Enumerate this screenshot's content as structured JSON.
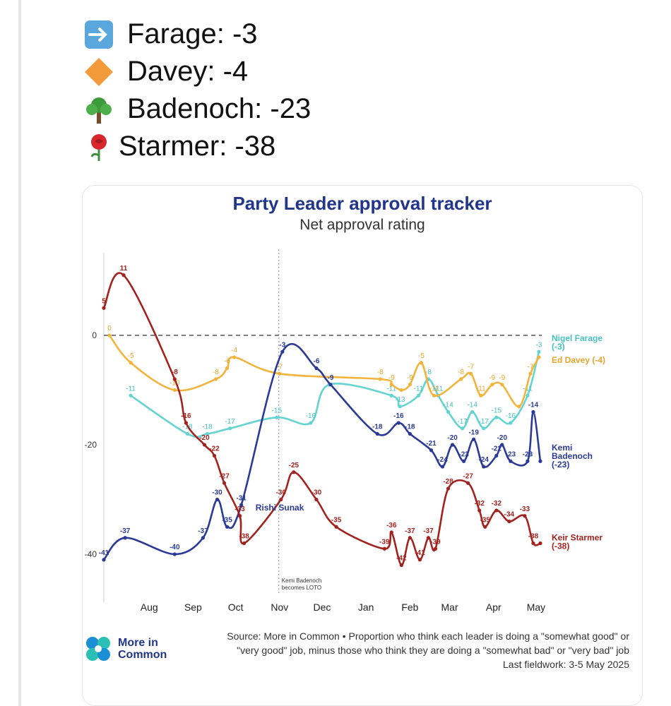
{
  "post": {
    "lines": [
      {
        "icon": "right-arrow-emoji-icon",
        "text": "Farage: -3"
      },
      {
        "icon": "orange-diamond-emoji-icon",
        "text": "Davey: -4"
      },
      {
        "icon": "tree-emoji-icon",
        "text": "Badenoch: -23"
      },
      {
        "icon": "rose-emoji-icon",
        "text": "Starmer: -38"
      }
    ]
  },
  "chart": {
    "title": "Party Leader approval tracker",
    "subtitle": "Net approval rating",
    "annotation": [
      "Kemi Badenoch",
      "becomes LOTO"
    ],
    "source_lines": [
      "Source: More in Common • Proportion who think each leader is doing a \"somewhat good\" or",
      "\"very good\" job, minus those who think they are doing a \"somewhat bad\" or \"very bad\" job",
      "Last fieldwork: 3-5 May 2025"
    ],
    "logo_lines": [
      "More in",
      "Common"
    ]
  },
  "chart_data": {
    "type": "line",
    "title": "Party Leader approval tracker",
    "subtitle": "Net approval rating",
    "xlabel": "",
    "ylabel": "",
    "x_ticks": [
      "Aug",
      "Sep",
      "Oct",
      "Nov",
      "Dec",
      "Jan",
      "Feb",
      "Mar",
      "Apr",
      "May"
    ],
    "y_ticks": [
      "0",
      "-20",
      "-40"
    ],
    "ylim": [
      -45,
      12
    ],
    "grid": false,
    "legend": "end-of-line labels",
    "annotation": "Kemi Badenoch becomes LOTO",
    "series": [
      {
        "name": "Nigel Farage",
        "label_lines": [
          "Nigel Farage",
          "(-3)"
        ],
        "color": "#63d4d1",
        "label_dark": false,
        "points": [
          {
            "x": "2024-07-20",
            "y": -11,
            "label": "-11"
          },
          {
            "x": "2024-08-29",
            "y": -18,
            "label": "-18"
          },
          {
            "x": "2024-09-12",
            "y": -18,
            "label": "-18"
          },
          {
            "x": "2024-09-28",
            "y": -17,
            "label": "-17"
          },
          {
            "x": "2024-10-31",
            "y": -15,
            "label": "-15"
          },
          {
            "x": "2024-11-24",
            "y": -16,
            "label": "-16"
          },
          {
            "x": "2024-12-07",
            "y": -9,
            "label": ""
          },
          {
            "x": "2025-01-20",
            "y": -11,
            "label": "-11"
          },
          {
            "x": "2025-01-26",
            "y": -13,
            "label": "-13"
          },
          {
            "x": "2025-02-08",
            "y": -11,
            "label": "-11"
          },
          {
            "x": "2025-02-15",
            "y": -8,
            "label": "-8"
          },
          {
            "x": "2025-02-22",
            "y": -11,
            "label": "-11"
          },
          {
            "x": "2025-03-01",
            "y": -14,
            "label": "-14"
          },
          {
            "x": "2025-03-11",
            "y": -17,
            "label": "-17"
          },
          {
            "x": "2025-03-18",
            "y": -14,
            "label": "-14"
          },
          {
            "x": "2025-03-26",
            "y": -17,
            "label": "-17"
          },
          {
            "x": "2025-04-04",
            "y": -15,
            "label": "-15"
          },
          {
            "x": "2025-04-14",
            "y": -16,
            "label": "-16"
          },
          {
            "x": "2025-04-26",
            "y": -11,
            "label": "-11"
          },
          {
            "x": "2025-05-04",
            "y": -3,
            "label": "-3"
          }
        ]
      },
      {
        "name": "Ed Davey",
        "label_lines": [
          "Ed Davey (-4)"
        ],
        "color": "#f2b43c",
        "label_dark": false,
        "points": [
          {
            "x": "2024-07-05",
            "y": 0,
            "label": "0"
          },
          {
            "x": "2024-07-20",
            "y": -5,
            "label": "-5"
          },
          {
            "x": "2024-08-20",
            "y": -10,
            "label": "-10"
          },
          {
            "x": "2024-09-18",
            "y": -8,
            "label": "-8"
          },
          {
            "x": "2024-09-26",
            "y": -6,
            "label": "-6"
          },
          {
            "x": "2024-10-01",
            "y": -4,
            "label": "-4"
          },
          {
            "x": "2024-11-02",
            "y": -7,
            "label": "-7"
          },
          {
            "x": "2025-01-12",
            "y": -8,
            "label": "-8"
          },
          {
            "x": "2025-01-20",
            "y": -9,
            "label": "-9"
          },
          {
            "x": "2025-01-27",
            "y": -10,
            "label": ""
          },
          {
            "x": "2025-02-02",
            "y": -9,
            "label": "-9"
          },
          {
            "x": "2025-02-10",
            "y": -5,
            "label": "-5"
          },
          {
            "x": "2025-02-19",
            "y": -11,
            "label": "-11"
          },
          {
            "x": "2025-03-10",
            "y": -8,
            "label": "-8"
          },
          {
            "x": "2025-03-17",
            "y": -7,
            "label": "-7"
          },
          {
            "x": "2025-03-24",
            "y": -11,
            "label": "-11"
          },
          {
            "x": "2025-04-01",
            "y": -9,
            "label": "-9"
          },
          {
            "x": "2025-04-08",
            "y": -9,
            "label": "-9"
          },
          {
            "x": "2025-04-20",
            "y": -13,
            "label": ""
          },
          {
            "x": "2025-04-28",
            "y": -7,
            "label": "-7"
          },
          {
            "x": "2025-05-04",
            "y": -4,
            "label": ""
          }
        ]
      },
      {
        "name": "Kemi Badenoch",
        "label_lines": [
          "Kemi",
          "Badenoch",
          "(-23)"
        ],
        "color": "#2b3a97",
        "label_dark": true,
        "points": [
          {
            "x": "2024-07-01",
            "y": -41,
            "label": "-41"
          },
          {
            "x": "2024-07-16",
            "y": -37,
            "label": "-37"
          },
          {
            "x": "2024-08-20",
            "y": -40,
            "label": "-40"
          },
          {
            "x": "2024-09-09",
            "y": -37,
            "label": "-37"
          },
          {
            "x": "2024-09-19",
            "y": -30,
            "label": "-30"
          },
          {
            "x": "2024-09-26",
            "y": -35,
            "label": "-35"
          },
          {
            "x": "2024-10-06",
            "y": -31,
            "label": "-31"
          },
          {
            "x": "2024-11-04",
            "y": -3,
            "label": "-3"
          },
          {
            "x": "2024-11-28",
            "y": -6,
            "label": "-6"
          },
          {
            "x": "2024-12-08",
            "y": -9,
            "label": "-9"
          },
          {
            "x": "2025-01-10",
            "y": -18,
            "label": "-18"
          },
          {
            "x": "2025-01-25",
            "y": -16,
            "label": "-16"
          },
          {
            "x": "2025-02-02",
            "y": -18,
            "label": "-18"
          },
          {
            "x": "2025-02-17",
            "y": -21,
            "label": "-21"
          },
          {
            "x": "2025-02-25",
            "y": -24,
            "label": "-24"
          },
          {
            "x": "2025-03-04",
            "y": -20,
            "label": "-20"
          },
          {
            "x": "2025-03-12",
            "y": -23,
            "label": "-23"
          },
          {
            "x": "2025-03-19",
            "y": -19,
            "label": "-19"
          },
          {
            "x": "2025-03-26",
            "y": -24,
            "label": "-24"
          },
          {
            "x": "2025-04-04",
            "y": -22,
            "label": "-22"
          },
          {
            "x": "2025-04-08",
            "y": -20,
            "label": "-20"
          },
          {
            "x": "2025-04-14",
            "y": -23,
            "label": "-23"
          },
          {
            "x": "2025-04-26",
            "y": -23,
            "label": "-23"
          },
          {
            "x": "2025-04-30",
            "y": -14,
            "label": "-14"
          },
          {
            "x": "2025-05-05",
            "y": -23,
            "label": ""
          }
        ]
      },
      {
        "name": "Keir Starmer",
        "label_lines": [
          "Keir Starmer",
          "(-38)"
        ],
        "color": "#a3221e",
        "label_dark": true,
        "points": [
          {
            "x": "2024-07-01",
            "y": 5,
            "label": "5"
          },
          {
            "x": "2024-07-15",
            "y": 11,
            "label": "11"
          },
          {
            "x": "2024-08-20",
            "y": -8,
            "label": "-8"
          },
          {
            "x": "2024-08-28",
            "y": -16,
            "label": "-16"
          },
          {
            "x": "2024-09-10",
            "y": -20,
            "label": "-20"
          },
          {
            "x": "2024-09-17",
            "y": -22,
            "label": "-22"
          },
          {
            "x": "2024-09-24",
            "y": -27,
            "label": "-27"
          },
          {
            "x": "2024-10-05",
            "y": -33,
            "label": "-33"
          },
          {
            "x": "2024-10-08",
            "y": -38,
            "label": "-38"
          },
          {
            "x": "2024-11-03",
            "y": -30,
            "label": "-30"
          },
          {
            "x": "2024-11-12",
            "y": -25,
            "label": "-25"
          },
          {
            "x": "2024-11-28",
            "y": -30,
            "label": "-30"
          },
          {
            "x": "2024-12-12",
            "y": -35,
            "label": "-35"
          },
          {
            "x": "2025-01-15",
            "y": -39,
            "label": "-39"
          },
          {
            "x": "2025-01-20",
            "y": -36,
            "label": "-36"
          },
          {
            "x": "2025-01-27",
            "y": -42,
            "label": "-42"
          },
          {
            "x": "2025-02-02",
            "y": -37,
            "label": "-37"
          },
          {
            "x": "2025-02-09",
            "y": -41,
            "label": "-41"
          },
          {
            "x": "2025-02-15",
            "y": -37,
            "label": "-37"
          },
          {
            "x": "2025-02-20",
            "y": -39,
            "label": "-39"
          },
          {
            "x": "2025-03-01",
            "y": -28,
            "label": "-28"
          },
          {
            "x": "2025-03-15",
            "y": -27,
            "label": "-27"
          },
          {
            "x": "2025-03-23",
            "y": -32,
            "label": "-32"
          },
          {
            "x": "2025-03-27",
            "y": -35,
            "label": "-35"
          },
          {
            "x": "2025-04-04",
            "y": -32,
            "label": "-32"
          },
          {
            "x": "2025-04-13",
            "y": -34,
            "label": "-34"
          },
          {
            "x": "2025-04-24",
            "y": -33,
            "label": "-33"
          },
          {
            "x": "2025-04-30",
            "y": -38,
            "label": "-38"
          },
          {
            "x": "2025-05-05",
            "y": -38,
            "label": ""
          }
        ]
      }
    ],
    "extra_labels": [
      {
        "text": "Rishi Sunak",
        "color": "#2b3a97",
        "x": "2024-10-16",
        "y": -32
      }
    ]
  }
}
